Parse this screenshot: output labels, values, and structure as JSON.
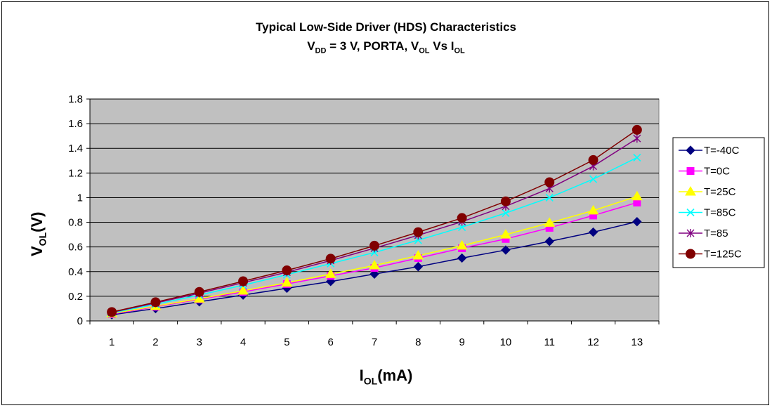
{
  "chart_data": {
    "type": "line",
    "title_line1": "Typical Low-Side Driver (HDS) Characteristics",
    "title_line2": {
      "v": "V",
      "v_sub": "DD",
      "middle": " = 3 V, PORTA, V",
      "ol_sub": "OL",
      "vs": " Vs I",
      "iol_sub": "OL"
    },
    "xlabel": {
      "main": "I",
      "sub": "OL",
      "rest": "(mA)"
    },
    "ylabel": {
      "main": "V",
      "sub": "OL",
      "rest": "(V)"
    },
    "categories": [
      "1",
      "2",
      "3",
      "4",
      "5",
      "6",
      "7",
      "8",
      "9",
      "10",
      "11",
      "12",
      "13"
    ],
    "ylim": [
      0,
      1.8
    ],
    "yticks": [
      "0",
      "0.2",
      "0.4",
      "0.6",
      "0.8",
      "1",
      "1.2",
      "1.4",
      "1.6",
      "1.8"
    ],
    "grid": "horizontal",
    "legend_position": "right",
    "plot_background": "#C0C0C0",
    "series": [
      {
        "name": "T=-40C",
        "color": "#000080",
        "marker": "diamond",
        "values": [
          0.05,
          0.1,
          0.155,
          0.21,
          0.265,
          0.32,
          0.38,
          0.44,
          0.51,
          0.575,
          0.645,
          0.72,
          0.805
        ]
      },
      {
        "name": "T=0C",
        "color": "#FF00FF",
        "marker": "square",
        "values": [
          0.055,
          0.115,
          0.175,
          0.235,
          0.3,
          0.365,
          0.43,
          0.51,
          0.59,
          0.665,
          0.755,
          0.855,
          0.96
        ]
      },
      {
        "name": "T=25C",
        "color": "#FFFF00",
        "marker": "triangle",
        "values": [
          0.06,
          0.12,
          0.18,
          0.245,
          0.31,
          0.38,
          0.45,
          0.53,
          0.61,
          0.7,
          0.795,
          0.895,
          1.01
        ]
      },
      {
        "name": "T=85C",
        "color": "#00FFFF",
        "marker": "x",
        "values": [
          0.065,
          0.135,
          0.21,
          0.29,
          0.375,
          0.465,
          0.555,
          0.655,
          0.76,
          0.875,
          1.0,
          1.15,
          1.325
        ]
      },
      {
        "name": "T=85",
        "color": "#800080",
        "marker": "star",
        "values": [
          0.07,
          0.145,
          0.225,
          0.31,
          0.395,
          0.49,
          0.59,
          0.695,
          0.805,
          0.93,
          1.075,
          1.255,
          1.48
        ]
      },
      {
        "name": "T=125C",
        "color": "#800000",
        "marker": "circle",
        "values": [
          0.072,
          0.152,
          0.235,
          0.322,
          0.41,
          0.505,
          0.61,
          0.72,
          0.835,
          0.97,
          1.125,
          1.305,
          1.55
        ]
      }
    ]
  }
}
